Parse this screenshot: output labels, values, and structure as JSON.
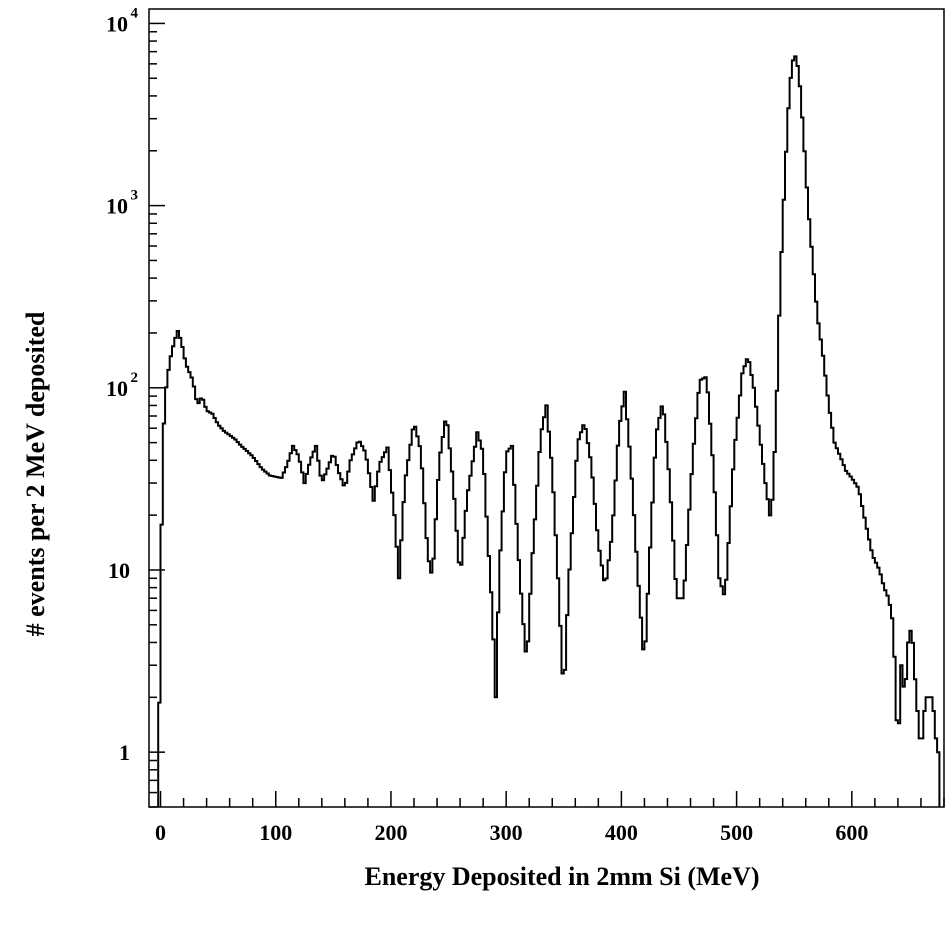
{
  "chart_data": {
    "type": "histogram",
    "xlabel": "Energy Deposited in 2mm Si (MeV)",
    "ylabel": "# events per 2 MeV deposited",
    "x_scale": "linear",
    "y_scale": "log",
    "xlim": [
      -10,
      680
    ],
    "ylim": [
      0.5,
      12000
    ],
    "bin_width_mev": 2,
    "x_ticks": [
      0,
      100,
      200,
      300,
      400,
      500,
      600
    ],
    "x_tick_labels": [
      "0",
      "100",
      "200",
      "300",
      "400",
      "500",
      "600"
    ],
    "y_ticks": [
      1,
      10,
      100,
      1000,
      10000
    ],
    "y_tick_labels": [
      {
        "base": "1",
        "exp": ""
      },
      {
        "base": "10",
        "exp": ""
      },
      {
        "base": "10",
        "exp": "2"
      },
      {
        "base": "10",
        "exp": "3"
      },
      {
        "base": "10",
        "exp": "4"
      }
    ],
    "line_color": "#000000",
    "profile": [
      [
        -2,
        0.5
      ],
      [
        0,
        7
      ],
      [
        2,
        45
      ],
      [
        4,
        90
      ],
      [
        8,
        140
      ],
      [
        12,
        180
      ],
      [
        15,
        205
      ],
      [
        18,
        180
      ],
      [
        22,
        135
      ],
      [
        28,
        110
      ],
      [
        32,
        80
      ],
      [
        36,
        90
      ],
      [
        40,
        75
      ],
      [
        45,
        72
      ],
      [
        50,
        63
      ],
      [
        55,
        58
      ],
      [
        60,
        55
      ],
      [
        65,
        52
      ],
      [
        70,
        48
      ],
      [
        75,
        45
      ],
      [
        80,
        42
      ],
      [
        88,
        36
      ],
      [
        95,
        33
      ],
      [
        105,
        32
      ],
      [
        110,
        38
      ],
      [
        115,
        48
      ],
      [
        120,
        42
      ],
      [
        125,
        30
      ],
      [
        130,
        40
      ],
      [
        135,
        48
      ],
      [
        140,
        30
      ],
      [
        145,
        36
      ],
      [
        150,
        44
      ],
      [
        155,
        34
      ],
      [
        160,
        28
      ],
      [
        165,
        40
      ],
      [
        172,
        52
      ],
      [
        178,
        44
      ],
      [
        185,
        24
      ],
      [
        190,
        38
      ],
      [
        197,
        47
      ],
      [
        203,
        20
      ],
      [
        207,
        9
      ],
      [
        212,
        30
      ],
      [
        220,
        65
      ],
      [
        226,
        45
      ],
      [
        232,
        12
      ],
      [
        236,
        9
      ],
      [
        242,
        40
      ],
      [
        248,
        72
      ],
      [
        254,
        30
      ],
      [
        260,
        9
      ],
      [
        266,
        25
      ],
      [
        275,
        57
      ],
      [
        280,
        44
      ],
      [
        284,
        15
      ],
      [
        288,
        6
      ],
      [
        291,
        2
      ],
      [
        294,
        10
      ],
      [
        300,
        44
      ],
      [
        305,
        48
      ],
      [
        310,
        14
      ],
      [
        314,
        6
      ],
      [
        318,
        3
      ],
      [
        322,
        10
      ],
      [
        330,
        55
      ],
      [
        335,
        80
      ],
      [
        340,
        35
      ],
      [
        345,
        9
      ],
      [
        350,
        2
      ],
      [
        354,
        8
      ],
      [
        362,
        50
      ],
      [
        368,
        65
      ],
      [
        374,
        38
      ],
      [
        380,
        14
      ],
      [
        386,
        8
      ],
      [
        392,
        16
      ],
      [
        398,
        60
      ],
      [
        403,
        95
      ],
      [
        408,
        40
      ],
      [
        414,
        10
      ],
      [
        420,
        3
      ],
      [
        424,
        10
      ],
      [
        430,
        55
      ],
      [
        436,
        85
      ],
      [
        442,
        30
      ],
      [
        448,
        7
      ],
      [
        454,
        7
      ],
      [
        462,
        42
      ],
      [
        468,
        110
      ],
      [
        474,
        115
      ],
      [
        480,
        35
      ],
      [
        485,
        9
      ],
      [
        490,
        7
      ],
      [
        498,
        45
      ],
      [
        505,
        120
      ],
      [
        510,
        150
      ],
      [
        515,
        100
      ],
      [
        520,
        55
      ],
      [
        525,
        30
      ],
      [
        530,
        18
      ],
      [
        534,
        60
      ],
      [
        538,
        400
      ],
      [
        542,
        1500
      ],
      [
        546,
        4500
      ],
      [
        550,
        7000
      ],
      [
        554,
        5500
      ],
      [
        558,
        2500
      ],
      [
        562,
        1000
      ],
      [
        566,
        500
      ],
      [
        570,
        250
      ],
      [
        575,
        150
      ],
      [
        580,
        80
      ],
      [
        585,
        50
      ],
      [
        590,
        42
      ],
      [
        595,
        35
      ],
      [
        600,
        32
      ],
      [
        606,
        28
      ],
      [
        612,
        18
      ],
      [
        618,
        12
      ],
      [
        624,
        10
      ],
      [
        628,
        8
      ],
      [
        632,
        7
      ],
      [
        636,
        5
      ],
      [
        640,
        1
      ],
      [
        643,
        3
      ],
      [
        646,
        2
      ],
      [
        649,
        4
      ],
      [
        652,
        5
      ],
      [
        656,
        2
      ],
      [
        660,
        1
      ],
      [
        664,
        2
      ],
      [
        670,
        2
      ],
      [
        674,
        1
      ]
    ]
  }
}
